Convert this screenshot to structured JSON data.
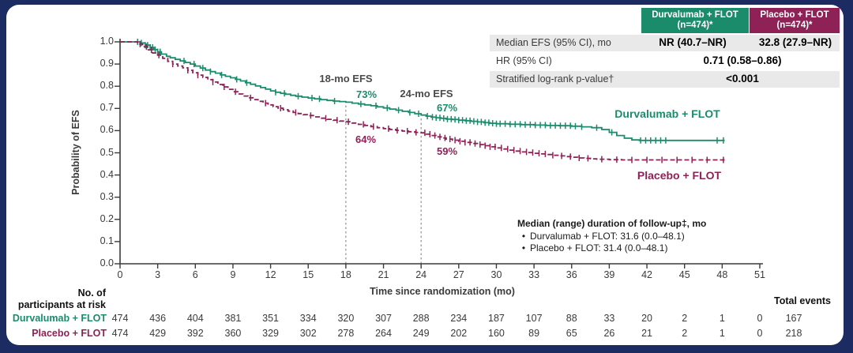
{
  "colors": {
    "green": "#1a8c6c",
    "maroon": "#8e2156",
    "navy": "#1c2c62",
    "row_gray": "#e9e9e9",
    "axis": "#3a3a3a"
  },
  "stats_table": {
    "columns": [
      {
        "name_line1": "Durvalumab + FLOT",
        "name_line2": "(n=474)*"
      },
      {
        "name_line1": "Placebo + FLOT",
        "name_line2": "(n=474)*"
      }
    ],
    "rows": [
      {
        "label": "Median EFS (95% CI), mo",
        "durvalumab": "NR (40.7–NR)",
        "placebo": "32.8 (27.9–NR)"
      },
      {
        "label": "HR (95% CI)",
        "combined": "0.71 (0.58–0.86)"
      },
      {
        "label": "Stratified log-rank p-value†",
        "combined": "<0.001"
      }
    ]
  },
  "annotations": {
    "efs18_label": "18-mo EFS",
    "efs18_durvalumab": "73%",
    "efs18_placebo": "64%",
    "efs24_label": "24-mo EFS",
    "efs24_durvalumab": "67%",
    "efs24_placebo": "59%",
    "curve_label_durvalumab": "Durvalumab + FLOT",
    "curve_label_placebo": "Placebo + FLOT"
  },
  "followup_note": {
    "title": "Median (range) duration of follow-up‡, mo",
    "bullet": "•",
    "items": [
      "Durvalumab + FLOT: 31.6 (0.0–48.1)",
      "Placebo + FLOT: 31.4 (0.0–48.1)"
    ]
  },
  "risk_table": {
    "header_line1": "No. of",
    "header_line2": "participants at risk",
    "total_events_label": "Total events",
    "times": [
      0,
      3,
      6,
      9,
      12,
      15,
      18,
      21,
      24,
      27,
      30,
      33,
      36,
      39,
      42,
      45,
      48,
      51
    ],
    "rows": [
      {
        "label": "Durvalumab + FLOT",
        "color": "#1a8c6c",
        "counts": [
          474,
          436,
          404,
          381,
          351,
          334,
          320,
          307,
          288,
          234,
          187,
          107,
          88,
          33,
          20,
          2,
          1,
          0
        ],
        "total_events": 167
      },
      {
        "label": "Placebo + FLOT",
        "color": "#8e2156",
        "counts": [
          474,
          429,
          392,
          360,
          329,
          302,
          278,
          264,
          249,
          202,
          160,
          89,
          65,
          26,
          21,
          2,
          1,
          0
        ],
        "total_events": 218
      }
    ]
  },
  "chart_data": {
    "type": "line",
    "subtype": "kaplan-meier-step",
    "title": "",
    "xlabel": "Time since randomization (mo)",
    "ylabel": "Probability of EFS",
    "xlim": [
      0,
      51
    ],
    "ylim": [
      0.0,
      1.0
    ],
    "x_ticks": [
      0,
      3,
      6,
      9,
      12,
      15,
      18,
      21,
      24,
      27,
      30,
      33,
      36,
      39,
      42,
      45,
      48,
      51
    ],
    "y_ticks": [
      0.0,
      0.1,
      0.2,
      0.3,
      0.4,
      0.5,
      0.6,
      0.7,
      0.8,
      0.9,
      1.0
    ],
    "grid": false,
    "legend_position": "on-curve-labels",
    "reference_lines": [
      {
        "x": 18,
        "y_top": 0.73
      },
      {
        "x": 24,
        "y_top": 0.67
      }
    ],
    "key_values": {
      "efs_18mo": {
        "durvalumab": 0.73,
        "placebo": 0.64
      },
      "efs_24mo": {
        "durvalumab": 0.67,
        "placebo": 0.59
      }
    },
    "series": [
      {
        "name": "Durvalumab + FLOT",
        "color": "#1a8c6c",
        "style": "solid",
        "points": [
          [
            0,
            1.0
          ],
          [
            1.3,
            1.0
          ],
          [
            1.6,
            0.995
          ],
          [
            2.0,
            0.985
          ],
          [
            2.4,
            0.975
          ],
          [
            2.7,
            0.965
          ],
          [
            3.0,
            0.955
          ],
          [
            3.3,
            0.945
          ],
          [
            3.7,
            0.935
          ],
          [
            4.0,
            0.928
          ],
          [
            4.4,
            0.921
          ],
          [
            4.8,
            0.914
          ],
          [
            5.2,
            0.907
          ],
          [
            5.6,
            0.9
          ],
          [
            6.0,
            0.891
          ],
          [
            6.4,
            0.882
          ],
          [
            6.8,
            0.873
          ],
          [
            7.2,
            0.866
          ],
          [
            7.6,
            0.859
          ],
          [
            8.0,
            0.851
          ],
          [
            8.4,
            0.845
          ],
          [
            8.8,
            0.838
          ],
          [
            9.2,
            0.831
          ],
          [
            9.6,
            0.824
          ],
          [
            10.0,
            0.816
          ],
          [
            10.4,
            0.809
          ],
          [
            10.8,
            0.801
          ],
          [
            11.2,
            0.794
          ],
          [
            11.6,
            0.787
          ],
          [
            12.0,
            0.779
          ],
          [
            12.4,
            0.773
          ],
          [
            12.8,
            0.768
          ],
          [
            13.2,
            0.764
          ],
          [
            13.6,
            0.759
          ],
          [
            14.0,
            0.755
          ],
          [
            14.5,
            0.751
          ],
          [
            15.0,
            0.747
          ],
          [
            15.5,
            0.743
          ],
          [
            16.0,
            0.74
          ],
          [
            16.5,
            0.736
          ],
          [
            17.0,
            0.733
          ],
          [
            17.5,
            0.731
          ],
          [
            18.0,
            0.728
          ],
          [
            18.5,
            0.724
          ],
          [
            19.0,
            0.72
          ],
          [
            19.5,
            0.716
          ],
          [
            20.0,
            0.712
          ],
          [
            20.5,
            0.707
          ],
          [
            21.0,
            0.702
          ],
          [
            21.5,
            0.697
          ],
          [
            22.0,
            0.692
          ],
          [
            22.5,
            0.687
          ],
          [
            23.0,
            0.682
          ],
          [
            23.5,
            0.676
          ],
          [
            24.0,
            0.67
          ],
          [
            24.4,
            0.665
          ],
          [
            24.8,
            0.661
          ],
          [
            25.2,
            0.658
          ],
          [
            25.6,
            0.655
          ],
          [
            26.0,
            0.652
          ],
          [
            26.5,
            0.65
          ],
          [
            27.0,
            0.647
          ],
          [
            27.5,
            0.645
          ],
          [
            28.0,
            0.642
          ],
          [
            28.5,
            0.639
          ],
          [
            29.0,
            0.636
          ],
          [
            29.5,
            0.633
          ],
          [
            30.0,
            0.631
          ],
          [
            31.0,
            0.629
          ],
          [
            32.0,
            0.627
          ],
          [
            33.0,
            0.625
          ],
          [
            34.0,
            0.623
          ],
          [
            35.0,
            0.622
          ],
          [
            36.0,
            0.62
          ],
          [
            36.8,
            0.617
          ],
          [
            37.6,
            0.613
          ],
          [
            38.4,
            0.605
          ],
          [
            39.0,
            0.592
          ],
          [
            39.6,
            0.578
          ],
          [
            40.2,
            0.566
          ],
          [
            40.8,
            0.558
          ],
          [
            41.4,
            0.556
          ],
          [
            48.2,
            0.556
          ]
        ],
        "censor_times": [
          1.4,
          1.7,
          2.0,
          2.2,
          2.4,
          2.6,
          2.8,
          3.0,
          3.2,
          5.1,
          5.9,
          6.6,
          7.2,
          8.1,
          9.3,
          10.1,
          12.4,
          13.1,
          14.2,
          15.3,
          15.9,
          17.1,
          19.2,
          20.4,
          21.3,
          22.2,
          23.1,
          23.8,
          24.5,
          24.9,
          25.2,
          25.5,
          25.8,
          26.1,
          26.4,
          26.7,
          27.0,
          27.3,
          27.6,
          27.9,
          28.2,
          28.5,
          28.8,
          29.1,
          29.4,
          29.7,
          30.0,
          30.3,
          30.7,
          31.1,
          31.5,
          31.9,
          32.3,
          32.7,
          33.1,
          33.5,
          33.9,
          34.3,
          34.7,
          35.1,
          35.5,
          35.9,
          36.3,
          36.8,
          38.0,
          39.2,
          41.5,
          41.9,
          42.3,
          42.7,
          43.1,
          43.5,
          47.6,
          48.1
        ]
      },
      {
        "name": "Placebo + FLOT",
        "color": "#8e2156",
        "style": "dashed",
        "points": [
          [
            0,
            1.0
          ],
          [
            1.1,
            1.0
          ],
          [
            1.4,
            0.99
          ],
          [
            1.8,
            0.978
          ],
          [
            2.2,
            0.964
          ],
          [
            2.6,
            0.95
          ],
          [
            3.0,
            0.94
          ],
          [
            3.4,
            0.926
          ],
          [
            3.8,
            0.912
          ],
          [
            4.2,
            0.9
          ],
          [
            4.6,
            0.891
          ],
          [
            5.0,
            0.883
          ],
          [
            5.4,
            0.872
          ],
          [
            5.8,
            0.861
          ],
          [
            6.2,
            0.85
          ],
          [
            6.6,
            0.84
          ],
          [
            7.0,
            0.83
          ],
          [
            7.4,
            0.819
          ],
          [
            7.8,
            0.808
          ],
          [
            8.2,
            0.797
          ],
          [
            8.6,
            0.786
          ],
          [
            9.0,
            0.775
          ],
          [
            9.4,
            0.765
          ],
          [
            9.8,
            0.756
          ],
          [
            10.2,
            0.748
          ],
          [
            10.6,
            0.74
          ],
          [
            11.0,
            0.732
          ],
          [
            11.4,
            0.724
          ],
          [
            11.8,
            0.716
          ],
          [
            12.2,
            0.708
          ],
          [
            12.6,
            0.701
          ],
          [
            13.0,
            0.694
          ],
          [
            13.4,
            0.688
          ],
          [
            13.8,
            0.682
          ],
          [
            14.2,
            0.677
          ],
          [
            14.6,
            0.672
          ],
          [
            15.0,
            0.668
          ],
          [
            15.5,
            0.662
          ],
          [
            16.0,
            0.656
          ],
          [
            16.5,
            0.651
          ],
          [
            17.0,
            0.647
          ],
          [
            17.5,
            0.643
          ],
          [
            18.0,
            0.64
          ],
          [
            18.5,
            0.634
          ],
          [
            19.0,
            0.628
          ],
          [
            19.5,
            0.623
          ],
          [
            20.0,
            0.618
          ],
          [
            20.5,
            0.613
          ],
          [
            21.0,
            0.609
          ],
          [
            21.5,
            0.605
          ],
          [
            22.0,
            0.601
          ],
          [
            22.5,
            0.598
          ],
          [
            23.0,
            0.595
          ],
          [
            23.5,
            0.592
          ],
          [
            24.0,
            0.59
          ],
          [
            24.4,
            0.584
          ],
          [
            24.8,
            0.578
          ],
          [
            25.2,
            0.572
          ],
          [
            25.6,
            0.567
          ],
          [
            26.0,
            0.562
          ],
          [
            26.5,
            0.557
          ],
          [
            27.0,
            0.552
          ],
          [
            27.5,
            0.547
          ],
          [
            28.0,
            0.542
          ],
          [
            28.5,
            0.537
          ],
          [
            29.0,
            0.532
          ],
          [
            29.5,
            0.527
          ],
          [
            30.0,
            0.522
          ],
          [
            30.5,
            0.517
          ],
          [
            31.0,
            0.512
          ],
          [
            31.5,
            0.508
          ],
          [
            32.0,
            0.504
          ],
          [
            32.5,
            0.501
          ],
          [
            33.0,
            0.498
          ],
          [
            33.5,
            0.495
          ],
          [
            34.0,
            0.492
          ],
          [
            34.5,
            0.489
          ],
          [
            35.0,
            0.486
          ],
          [
            35.5,
            0.483
          ],
          [
            36.0,
            0.48
          ],
          [
            36.5,
            0.477
          ],
          [
            37.0,
            0.475
          ],
          [
            37.5,
            0.473
          ],
          [
            38.0,
            0.471
          ],
          [
            39.0,
            0.469
          ],
          [
            40.0,
            0.468
          ],
          [
            48.2,
            0.468
          ]
        ],
        "censor_times": [
          1.6,
          2.1,
          2.5,
          3.1,
          4.2,
          5.4,
          6.2,
          7.4,
          8.3,
          9.2,
          10.4,
          11.6,
          12.8,
          14.0,
          15.2,
          16.4,
          17.3,
          18.2,
          19.4,
          20.2,
          21.4,
          22.1,
          22.9,
          23.6,
          24.3,
          24.7,
          25.1,
          25.5,
          25.9,
          26.3,
          26.7,
          27.1,
          27.5,
          27.9,
          28.3,
          28.7,
          29.1,
          29.5,
          29.9,
          30.4,
          30.9,
          31.4,
          31.9,
          32.4,
          32.9,
          33.4,
          33.9,
          34.5,
          35.2,
          35.9,
          36.6,
          37.3,
          38.4,
          39.6,
          40.8,
          42.0,
          43.2,
          44.4,
          45.6,
          46.8,
          48.1
        ]
      }
    ]
  }
}
